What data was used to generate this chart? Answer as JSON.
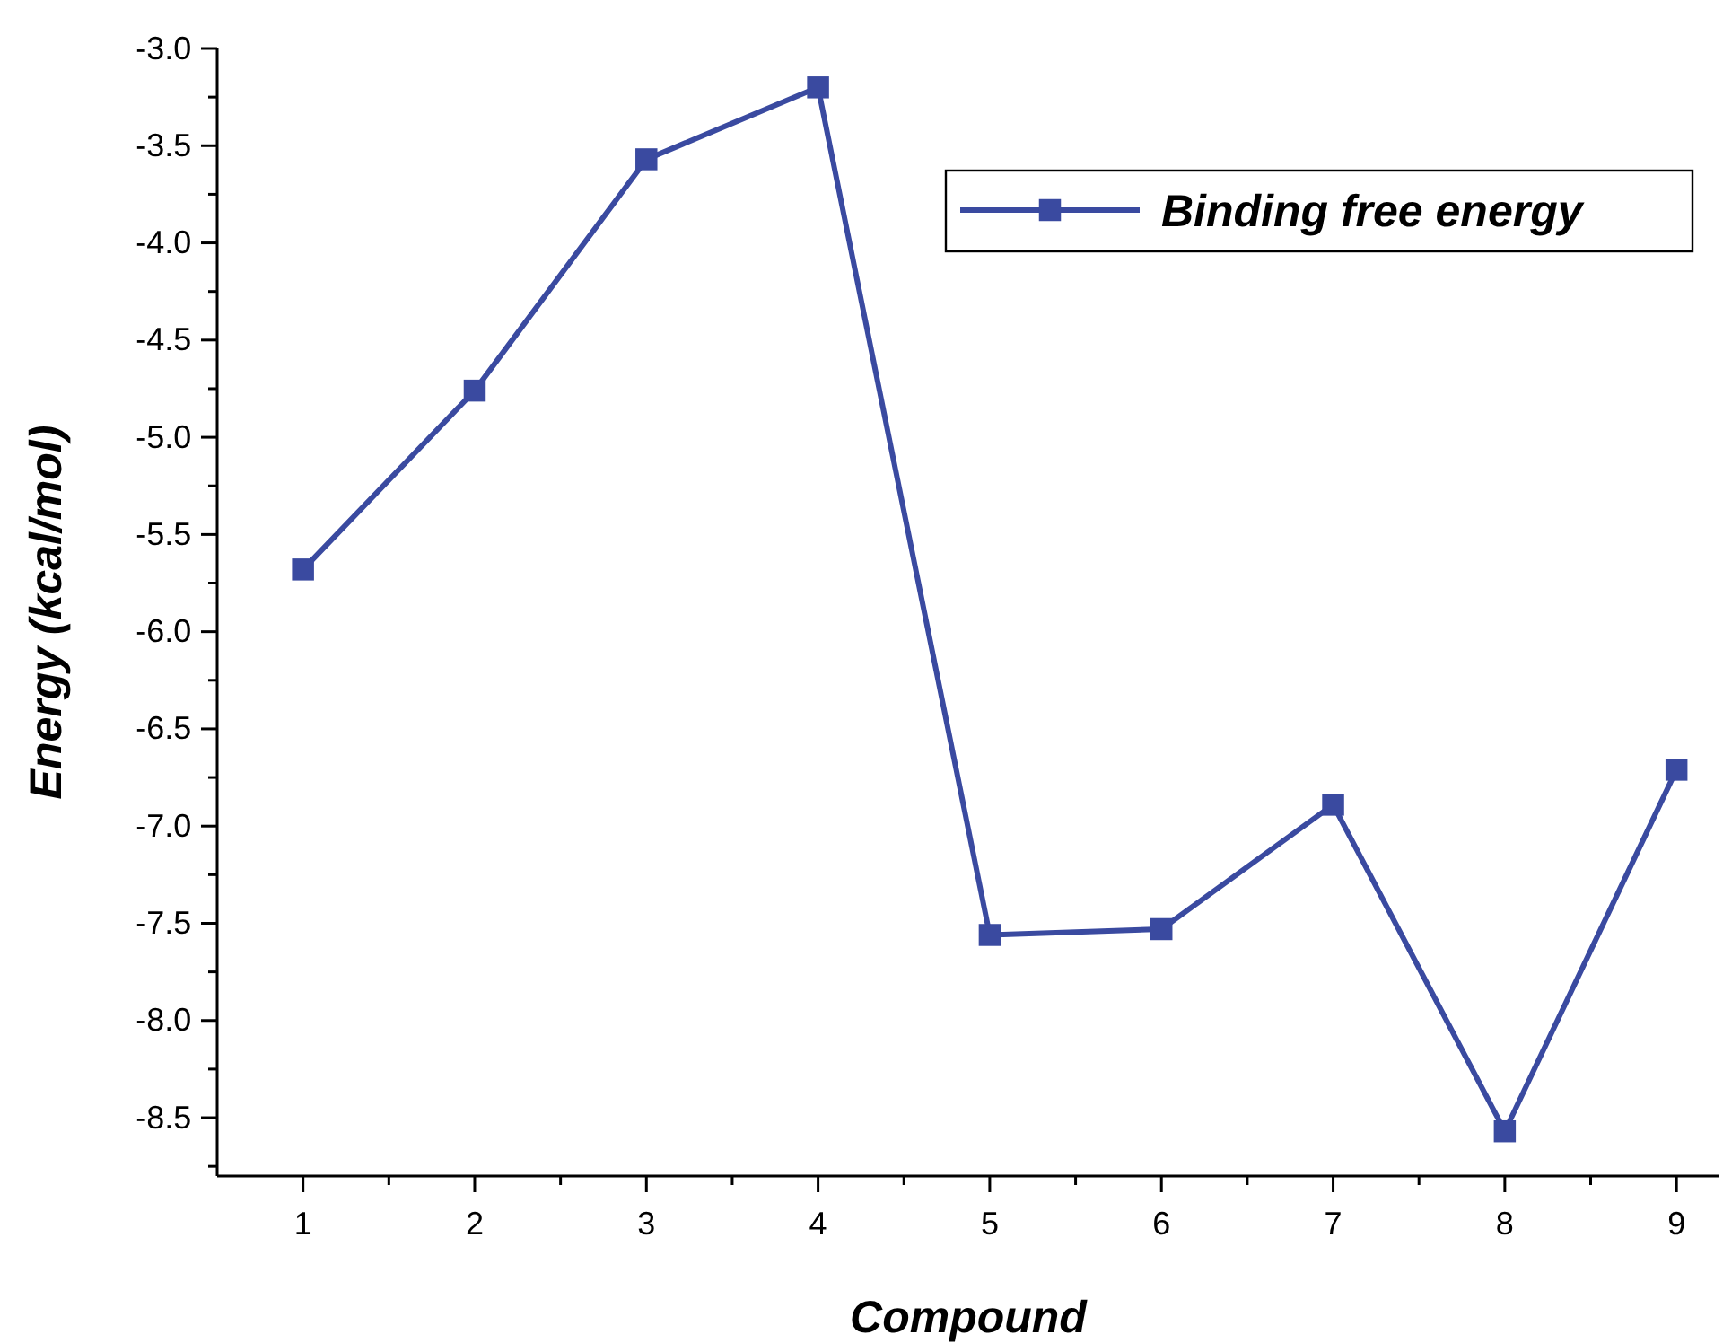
{
  "chart_data": {
    "type": "line",
    "xlabel": "Compound",
    "ylabel": "Energy (kcal/mol)",
    "x": [
      1,
      2,
      3,
      4,
      5,
      6,
      7,
      8,
      9
    ],
    "series": [
      {
        "name": "Binding free energy",
        "color": "#3a4aa0",
        "values": [
          -5.68,
          -4.76,
          -3.57,
          -3.2,
          -7.56,
          -7.53,
          -6.89,
          -8.57,
          -6.71
        ]
      }
    ],
    "xlim": [
      0.5,
      9.25
    ],
    "xticks": [
      1,
      {
        "value": 1.5,
        "label": null
      },
      2,
      {
        "value": 2.5,
        "label": null
      },
      3,
      {
        "value": 3.5,
        "label": null
      },
      4,
      {
        "value": 4.5,
        "label": null
      },
      5,
      {
        "value": 5.5,
        "label": null
      },
      6,
      {
        "value": 6.5,
        "label": null
      },
      7,
      {
        "value": 7.5,
        "label": null
      },
      8,
      {
        "value": 8.5,
        "label": null
      },
      9
    ],
    "ylim": [
      -8.8,
      -3.0
    ],
    "yticks": [
      {
        "value": -8.75,
        "label": null
      },
      {
        "value": -8.5,
        "label": "-8.5"
      },
      {
        "value": -8.25,
        "label": null
      },
      {
        "value": -8.0,
        "label": "-8.0"
      },
      {
        "value": -7.75,
        "label": null
      },
      {
        "value": -7.5,
        "label": "-7.5"
      },
      {
        "value": -7.25,
        "label": null
      },
      {
        "value": -7.0,
        "label": "-7.0"
      },
      {
        "value": -6.75,
        "label": null
      },
      {
        "value": -6.5,
        "label": "-6.5"
      },
      {
        "value": -6.25,
        "label": null
      },
      {
        "value": -6.0,
        "label": "-6.0"
      },
      {
        "value": -5.75,
        "label": null
      },
      {
        "value": -5.5,
        "label": "-5.5"
      },
      {
        "value": -5.25,
        "label": null
      },
      {
        "value": -5.0,
        "label": "-5.0"
      },
      {
        "value": -4.75,
        "label": null
      },
      {
        "value": -4.5,
        "label": "-4.5"
      },
      {
        "value": -4.25,
        "label": null
      },
      {
        "value": -4.0,
        "label": "-4.0"
      },
      {
        "value": -3.75,
        "label": null
      },
      {
        "value": -3.5,
        "label": "-3.5"
      },
      {
        "value": -3.25,
        "label": null
      },
      {
        "value": -3.0,
        "label": "-3.0"
      }
    ],
    "marker": "square",
    "line_style": "solid",
    "legend": "top right",
    "grid": false
  }
}
